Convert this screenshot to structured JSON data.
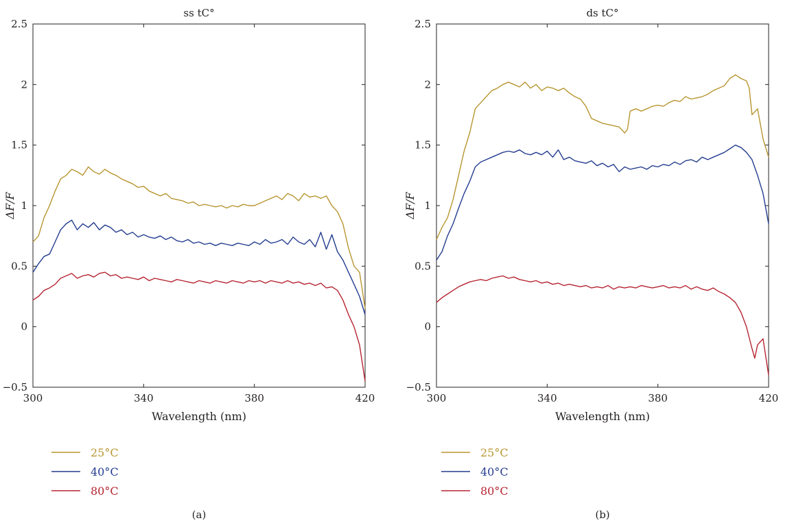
{
  "figure": {
    "panels": [
      {
        "caption": "(a)"
      },
      {
        "caption": "(b)"
      }
    ]
  },
  "chart_data": [
    {
      "type": "line",
      "title": "ss tC°",
      "xlabel": "Wavelength (nm)",
      "ylabel": "ΔF/F",
      "xlim": [
        300,
        420
      ],
      "ylim": [
        -0.5,
        2.5
      ],
      "xticks": [
        300,
        340,
        380,
        420
      ],
      "yticks": [
        -0.5,
        0,
        0.5,
        1,
        1.5,
        2,
        2.5
      ],
      "xtick_labels": [
        "300",
        "340",
        "380",
        "420"
      ],
      "ytick_labels": [
        "−0.5",
        "0",
        "0.5",
        "1",
        "1.5",
        "2",
        "2.5"
      ],
      "grid": false,
      "legend_position": "below-left",
      "caption": "(a)",
      "series": [
        {
          "name": "25°C",
          "color": "#b7952f",
          "x": [
            300,
            302,
            304,
            306,
            308,
            310,
            312,
            314,
            316,
            318,
            320,
            322,
            324,
            326,
            328,
            330,
            332,
            334,
            336,
            338,
            340,
            342,
            344,
            346,
            348,
            350,
            352,
            354,
            356,
            358,
            360,
            362,
            364,
            366,
            368,
            370,
            372,
            374,
            376,
            378,
            380,
            382,
            384,
            386,
            388,
            390,
            392,
            394,
            396,
            398,
            400,
            402,
            404,
            406,
            408,
            410,
            412,
            414,
            416,
            418,
            420
          ],
          "y": [
            0.7,
            0.75,
            0.9,
            1.0,
            1.12,
            1.22,
            1.25,
            1.3,
            1.28,
            1.25,
            1.32,
            1.28,
            1.26,
            1.3,
            1.27,
            1.25,
            1.22,
            1.2,
            1.18,
            1.15,
            1.16,
            1.12,
            1.1,
            1.08,
            1.1,
            1.06,
            1.05,
            1.04,
            1.02,
            1.03,
            1.0,
            1.01,
            1.0,
            0.99,
            1.0,
            0.98,
            1.0,
            0.99,
            1.01,
            1.0,
            1.0,
            1.02,
            1.04,
            1.06,
            1.08,
            1.05,
            1.1,
            1.08,
            1.04,
            1.1,
            1.07,
            1.08,
            1.06,
            1.08,
            1.0,
            0.95,
            0.85,
            0.65,
            0.5,
            0.45,
            0.15
          ]
        },
        {
          "name": "40°C",
          "color": "#233c8f",
          "x": [
            300,
            302,
            304,
            306,
            308,
            310,
            312,
            314,
            316,
            318,
            320,
            322,
            324,
            326,
            328,
            330,
            332,
            334,
            336,
            338,
            340,
            342,
            344,
            346,
            348,
            350,
            352,
            354,
            356,
            358,
            360,
            362,
            364,
            366,
            368,
            370,
            372,
            374,
            376,
            378,
            380,
            382,
            384,
            386,
            388,
            390,
            392,
            394,
            396,
            398,
            400,
            402,
            404,
            406,
            408,
            410,
            412,
            414,
            416,
            418,
            420
          ],
          "y": [
            0.45,
            0.52,
            0.58,
            0.6,
            0.7,
            0.8,
            0.85,
            0.88,
            0.8,
            0.85,
            0.82,
            0.86,
            0.8,
            0.84,
            0.82,
            0.78,
            0.8,
            0.76,
            0.78,
            0.74,
            0.76,
            0.74,
            0.73,
            0.75,
            0.72,
            0.74,
            0.71,
            0.7,
            0.72,
            0.69,
            0.7,
            0.68,
            0.69,
            0.67,
            0.69,
            0.68,
            0.67,
            0.69,
            0.68,
            0.67,
            0.7,
            0.68,
            0.72,
            0.69,
            0.7,
            0.72,
            0.68,
            0.74,
            0.7,
            0.68,
            0.72,
            0.66,
            0.78,
            0.64,
            0.76,
            0.62,
            0.55,
            0.45,
            0.35,
            0.25,
            0.1
          ]
        },
        {
          "name": "80°C",
          "color": "#b52330",
          "x": [
            300,
            302,
            304,
            306,
            308,
            310,
            312,
            314,
            316,
            318,
            320,
            322,
            324,
            326,
            328,
            330,
            332,
            334,
            336,
            338,
            340,
            342,
            344,
            346,
            348,
            350,
            352,
            354,
            356,
            358,
            360,
            362,
            364,
            366,
            368,
            370,
            372,
            374,
            376,
            378,
            380,
            382,
            384,
            386,
            388,
            390,
            392,
            394,
            396,
            398,
            400,
            402,
            404,
            406,
            408,
            410,
            412,
            414,
            416,
            418,
            420
          ],
          "y": [
            0.22,
            0.25,
            0.3,
            0.32,
            0.35,
            0.4,
            0.42,
            0.44,
            0.4,
            0.42,
            0.43,
            0.41,
            0.44,
            0.45,
            0.42,
            0.43,
            0.4,
            0.41,
            0.4,
            0.39,
            0.41,
            0.38,
            0.4,
            0.39,
            0.38,
            0.37,
            0.39,
            0.38,
            0.37,
            0.36,
            0.38,
            0.37,
            0.36,
            0.38,
            0.37,
            0.36,
            0.38,
            0.37,
            0.36,
            0.38,
            0.37,
            0.38,
            0.36,
            0.38,
            0.37,
            0.36,
            0.38,
            0.36,
            0.37,
            0.35,
            0.36,
            0.34,
            0.36,
            0.32,
            0.33,
            0.3,
            0.22,
            0.1,
            0.0,
            -0.15,
            -0.45
          ]
        }
      ]
    },
    {
      "type": "line",
      "title": "ds tC°",
      "xlabel": "Wavelength (nm)",
      "ylabel": "ΔF/F",
      "xlim": [
        300,
        420
      ],
      "ylim": [
        -0.5,
        2.5
      ],
      "xticks": [
        300,
        340,
        380,
        420
      ],
      "yticks": [
        -0.5,
        0,
        0.5,
        1,
        1.5,
        2,
        2.5
      ],
      "xtick_labels": [
        "300",
        "340",
        "380",
        "420"
      ],
      "ytick_labels": [
        "−0.5",
        "0",
        "0.5",
        "1",
        "1.5",
        "2",
        "2.5"
      ],
      "grid": false,
      "legend_position": "below-left",
      "caption": "(b)",
      "series": [
        {
          "name": "25°C",
          "color": "#b7952f",
          "x": [
            300,
            302,
            304,
            306,
            308,
            310,
            312,
            314,
            316,
            318,
            320,
            322,
            324,
            326,
            328,
            330,
            332,
            334,
            336,
            338,
            340,
            342,
            344,
            346,
            348,
            350,
            352,
            354,
            356,
            358,
            360,
            362,
            364,
            366,
            368,
            369,
            370,
            372,
            374,
            376,
            378,
            380,
            382,
            384,
            386,
            388,
            390,
            392,
            394,
            396,
            398,
            400,
            402,
            404,
            406,
            408,
            410,
            412,
            413,
            414,
            416,
            418,
            420
          ],
          "y": [
            0.72,
            0.82,
            0.9,
            1.05,
            1.25,
            1.45,
            1.6,
            1.8,
            1.85,
            1.9,
            1.95,
            1.97,
            2.0,
            2.02,
            2.0,
            1.98,
            2.02,
            1.97,
            2.0,
            1.95,
            1.98,
            1.97,
            1.95,
            1.97,
            1.93,
            1.9,
            1.88,
            1.82,
            1.72,
            1.7,
            1.68,
            1.67,
            1.66,
            1.65,
            1.6,
            1.63,
            1.78,
            1.8,
            1.78,
            1.8,
            1.82,
            1.83,
            1.82,
            1.85,
            1.87,
            1.86,
            1.9,
            1.88,
            1.89,
            1.9,
            1.92,
            1.95,
            1.97,
            1.99,
            2.05,
            2.08,
            2.05,
            2.03,
            1.97,
            1.75,
            1.8,
            1.55,
            1.4
          ]
        },
        {
          "name": "40°C",
          "color": "#233c8f",
          "x": [
            300,
            302,
            304,
            306,
            308,
            310,
            312,
            314,
            316,
            318,
            320,
            322,
            324,
            326,
            328,
            330,
            332,
            334,
            336,
            338,
            340,
            342,
            344,
            346,
            348,
            350,
            352,
            354,
            356,
            358,
            360,
            362,
            364,
            366,
            368,
            370,
            372,
            374,
            376,
            378,
            380,
            382,
            384,
            386,
            388,
            390,
            392,
            394,
            396,
            398,
            400,
            402,
            404,
            406,
            408,
            410,
            412,
            414,
            416,
            418,
            420
          ],
          "y": [
            0.55,
            0.62,
            0.75,
            0.85,
            0.98,
            1.1,
            1.2,
            1.32,
            1.36,
            1.38,
            1.4,
            1.42,
            1.44,
            1.45,
            1.44,
            1.46,
            1.43,
            1.42,
            1.44,
            1.42,
            1.45,
            1.4,
            1.46,
            1.38,
            1.4,
            1.37,
            1.36,
            1.35,
            1.37,
            1.33,
            1.35,
            1.32,
            1.34,
            1.28,
            1.32,
            1.3,
            1.31,
            1.32,
            1.3,
            1.33,
            1.32,
            1.34,
            1.33,
            1.36,
            1.34,
            1.37,
            1.38,
            1.36,
            1.4,
            1.38,
            1.4,
            1.42,
            1.44,
            1.47,
            1.5,
            1.48,
            1.44,
            1.38,
            1.25,
            1.1,
            0.85
          ]
        },
        {
          "name": "80°C",
          "color": "#b52330",
          "x": [
            300,
            302,
            304,
            306,
            308,
            310,
            312,
            314,
            316,
            318,
            320,
            322,
            324,
            326,
            328,
            330,
            332,
            334,
            336,
            338,
            340,
            342,
            344,
            346,
            348,
            350,
            352,
            354,
            356,
            358,
            360,
            362,
            364,
            366,
            368,
            370,
            372,
            374,
            376,
            378,
            380,
            382,
            384,
            386,
            388,
            390,
            392,
            394,
            396,
            398,
            400,
            402,
            404,
            406,
            408,
            410,
            412,
            414,
            415,
            416,
            418,
            420
          ],
          "y": [
            0.2,
            0.24,
            0.27,
            0.3,
            0.33,
            0.35,
            0.37,
            0.38,
            0.39,
            0.38,
            0.4,
            0.41,
            0.42,
            0.4,
            0.41,
            0.39,
            0.38,
            0.37,
            0.38,
            0.36,
            0.37,
            0.35,
            0.36,
            0.34,
            0.35,
            0.34,
            0.33,
            0.34,
            0.32,
            0.33,
            0.32,
            0.34,
            0.31,
            0.33,
            0.32,
            0.33,
            0.32,
            0.34,
            0.33,
            0.32,
            0.33,
            0.34,
            0.32,
            0.33,
            0.32,
            0.34,
            0.31,
            0.33,
            0.31,
            0.3,
            0.32,
            0.29,
            0.27,
            0.24,
            0.2,
            0.12,
            0.0,
            -0.18,
            -0.26,
            -0.15,
            -0.1,
            -0.4
          ]
        }
      ]
    }
  ]
}
